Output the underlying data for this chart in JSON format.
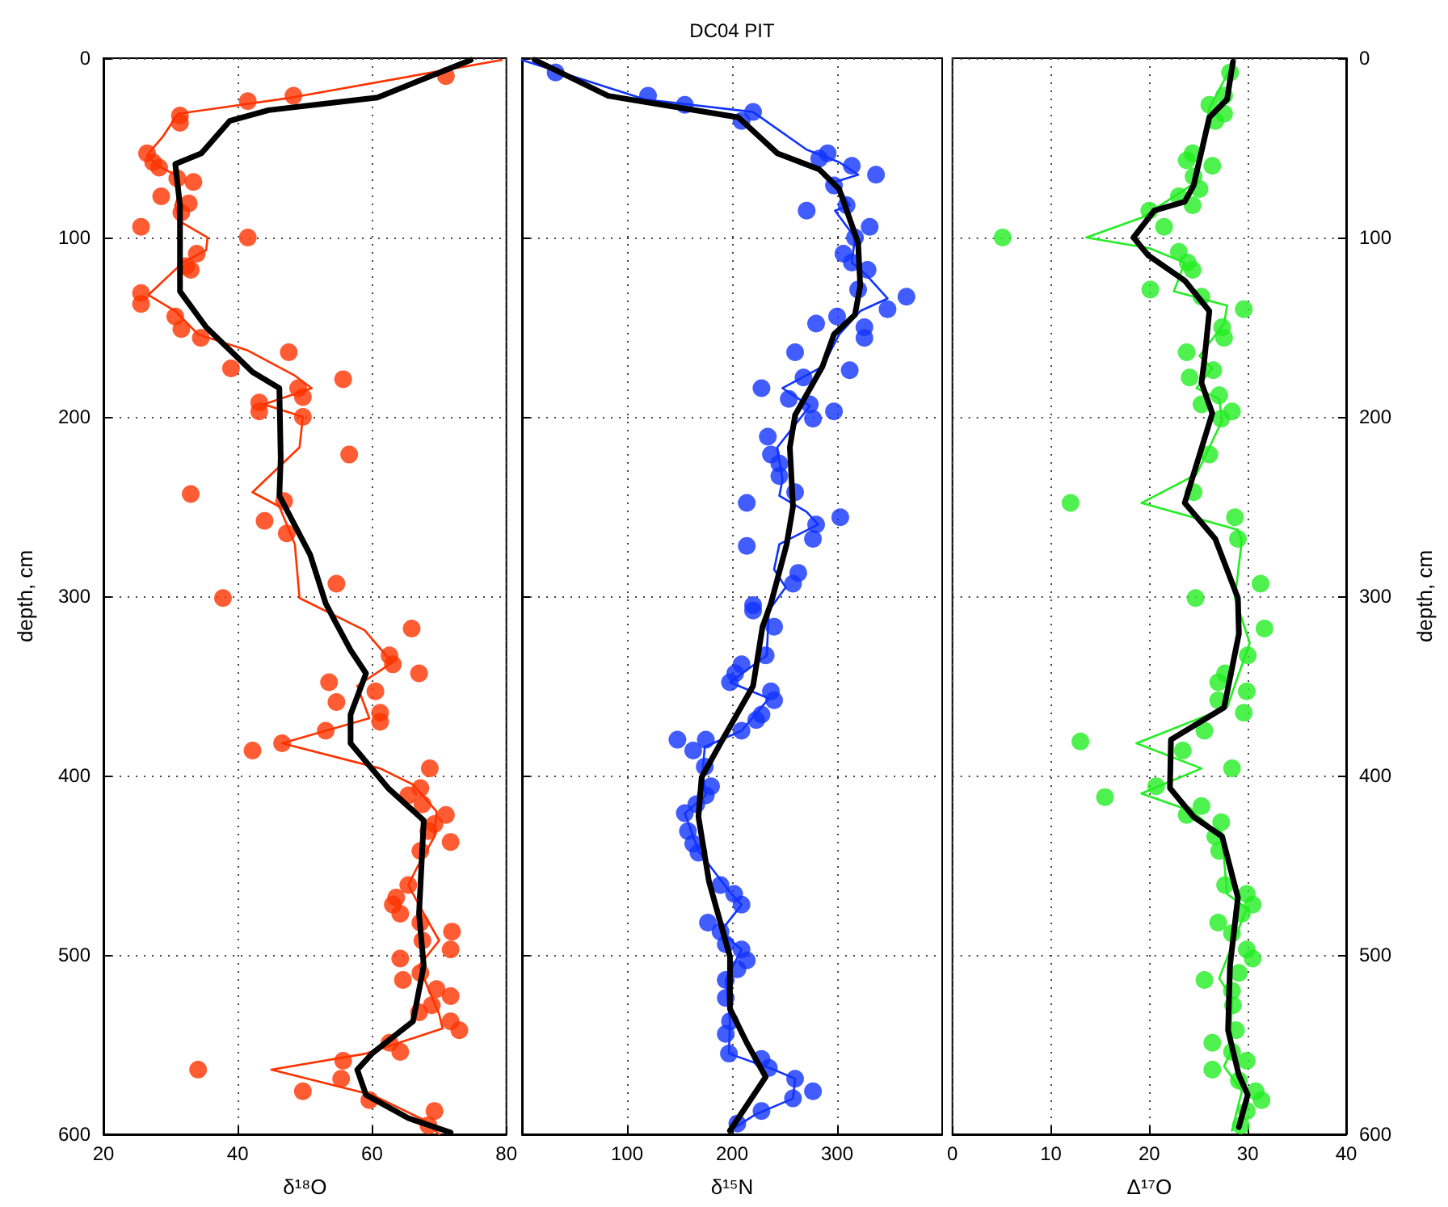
{
  "chart_data": [
    {
      "type": "line",
      "xlabel": "δ¹⁸O",
      "ylabel": "depth, cm",
      "xlim": [
        20,
        80
      ],
      "xticks": [
        20,
        40,
        60,
        80
      ],
      "ylim": [
        600,
        0
      ],
      "yticks": [
        0,
        100,
        200,
        300,
        400,
        500,
        600
      ],
      "grid": true,
      "series": [
        {
          "type": "scatter",
          "marker": "circle",
          "color": "#ff3300",
          "x": [
            71,
            48.3,
            41.5,
            31.4,
            31.4,
            26.5,
            27.4,
            28.3,
            31,
            33.4,
            28.6,
            32.7,
            31.6,
            25.6,
            41.5,
            33.9,
            32.3,
            33,
            25.6,
            25.6,
            30.7,
            31.6,
            34.5,
            47.6,
            39,
            55.7,
            49,
            49.7,
            43.2,
            43.2,
            49.7,
            56.6,
            33,
            46.9,
            47.3,
            44,
            54.7,
            37.8,
            65.9,
            62.6,
            63.1,
            67,
            53.6,
            60.5,
            54.7,
            61.2,
            61.2,
            53.1,
            46.6,
            42.2,
            68.6,
            67.2,
            65.4,
            67.5,
            71,
            69.3,
            68.4,
            71.7,
            67.2,
            65.4,
            63.6,
            63.1,
            64.2,
            67.2,
            71.9,
            67.5,
            71.7,
            64.2,
            67.2,
            64.6,
            69.6,
            71.7,
            68.9,
            67,
            71.7,
            73,
            62.6,
            64.2,
            55.7,
            34.1,
            55.4,
            49.7,
            59.6,
            69.3,
            68.4
          ],
          "values": [
            10,
            21,
            24,
            32,
            36,
            53,
            58,
            61,
            67,
            69,
            77,
            81,
            86,
            94,
            100,
            109,
            116,
            118,
            131,
            137,
            144,
            151,
            156,
            164,
            173,
            179,
            184,
            189,
            192,
            197,
            200,
            221,
            243,
            247,
            265,
            258,
            293,
            301,
            318,
            333,
            338,
            343,
            348,
            353,
            359,
            365,
            370,
            375,
            382,
            386,
            396,
            407,
            411,
            416,
            422,
            427,
            431,
            437,
            442,
            461,
            468,
            472,
            477,
            482,
            487,
            492,
            497,
            502,
            510,
            514,
            519,
            523,
            528,
            532,
            537,
            542,
            549,
            554,
            559,
            564,
            569,
            576,
            581,
            587,
            595
          ]
        },
        {
          "type": "line",
          "marker": "none",
          "line_style": "solid",
          "color": "#ff3300",
          "x": [
            79.3,
            48,
            31.1,
            28.8,
            26.5,
            28.1,
            30.7,
            31.4,
            30.7,
            31.4,
            35.5,
            35.3,
            31.8,
            26.7,
            30.7,
            34.1,
            41.5,
            48.5,
            51,
            43.9,
            49.7,
            49.2,
            42.2,
            46.2,
            48.5,
            49.2,
            58.9,
            63,
            57.8,
            59.6,
            46.6,
            61.2,
            66.1,
            69.6,
            69.3,
            66.6,
            65.4,
            67.7,
            70,
            67,
            68.4,
            70,
            70.5,
            59.1,
            45,
            60,
            67.7,
            70
          ],
          "values": [
            1,
            22,
            31,
            44,
            54,
            60,
            65,
            74,
            82,
            91,
            100,
            107,
            114,
            132,
            141,
            154,
            163,
            177,
            184,
            193,
            200,
            217,
            242,
            250,
            271,
            301,
            319,
            337,
            350,
            368,
            382,
            396,
            405,
            420,
            434,
            452,
            461,
            477,
            492,
            506,
            519,
            533,
            541,
            555,
            564,
            578,
            592,
            600
          ]
        },
        {
          "type": "line",
          "marker": "none",
          "line_style": "solid",
          "color": "#000000",
          "x": [
            74.7,
            60.8,
            44.6,
            38.8,
            34.6,
            30.7,
            31.4,
            31.4,
            35.3,
            42.2,
            46.2,
            46.4,
            46.2,
            50.8,
            53.1,
            54.5,
            56.8,
            59.1,
            56.8,
            56.8,
            62.4,
            67.7,
            67,
            67.7,
            66.1,
            60,
            57.8,
            59.1,
            65.4,
            71.7
          ],
          "values": [
            1,
            22,
            29,
            35,
            53,
            59,
            82,
            130,
            150,
            175,
            184,
            223,
            244,
            277,
            304,
            314,
            330,
            343,
            366,
            382,
            407,
            425,
            477,
            506,
            537,
            555,
            564,
            578,
            591,
            599
          ]
        }
      ]
    },
    {
      "type": "line",
      "title": "DC04 PIT",
      "xlabel": "δ¹⁵N",
      "xlim": [
        0,
        400
      ],
      "xticks": [
        100,
        200,
        300
      ],
      "ylim": [
        600,
        0
      ],
      "yticks": [
        0,
        100,
        200,
        300,
        400,
        500,
        600
      ],
      "tick_labels": "x",
      "grid": true,
      "series": [
        {
          "type": "scatter",
          "marker": "circle",
          "color": "#1133ff",
          "x": [
            32,
            120,
            155,
            220,
            209,
            291,
            283,
            314,
            337,
            297,
            309,
            271,
            331,
            317,
            306,
            314,
            329,
            320,
            366,
            348,
            300,
            280,
            326,
            326,
            260,
            312,
            268,
            228,
            254,
            274,
            277,
            297,
            234,
            237,
            245,
            245,
            260,
            214,
            303,
            280,
            277,
            214,
            263,
            258,
            220,
            220,
            240,
            232,
            209,
            203,
            198,
            237,
            240,
            228,
            223,
            209,
            148,
            175,
            163,
            174,
            180,
            175,
            166,
            155,
            158,
            163,
            168,
            189,
            202,
            209,
            177,
            189,
            194,
            209,
            214,
            205,
            194,
            194,
            198,
            194,
            197,
            228,
            235,
            260,
            277,
            258,
            228,
            205
          ],
          "values": [
            8,
            21,
            26,
            30,
            35,
            53,
            56,
            60,
            65,
            71,
            82,
            85,
            94,
            100,
            109,
            114,
            118,
            129,
            133,
            140,
            144,
            148,
            150,
            156,
            164,
            174,
            178,
            184,
            190,
            193,
            201,
            197,
            211,
            221,
            226,
            233,
            242,
            248,
            256,
            260,
            268,
            272,
            287,
            293,
            305,
            308,
            317,
            333,
            338,
            343,
            348,
            353,
            358,
            366,
            369,
            375,
            380,
            380,
            386,
            395,
            406,
            411,
            416,
            421,
            431,
            438,
            443,
            461,
            466,
            472,
            482,
            487,
            494,
            497,
            503,
            508,
            514,
            524,
            537,
            544,
            555,
            558,
            563,
            569,
            576,
            580,
            587,
            594
          ]
        },
        {
          "type": "line",
          "marker": "none",
          "line_style": "solid",
          "color": "#1133ff",
          "x": [
            0,
            117,
            220,
            271,
            302,
            320,
            298,
            312,
            298,
            317,
            314,
            328,
            348,
            322,
            302,
            286,
            248,
            274,
            243,
            248,
            245,
            271,
            282,
            245,
            240,
            251,
            235,
            233,
            198,
            235,
            209,
            174,
            172,
            175,
            155,
            168,
            198,
            209,
            189,
            209,
            194,
            198,
            197,
            240,
            260,
            258,
            222,
            198
          ],
          "values": [
            1,
            23,
            30,
            51,
            58,
            65,
            69,
            82,
            85,
            100,
            114,
            121,
            134,
            141,
            154,
            172,
            184,
            194,
            217,
            235,
            244,
            253,
            260,
            271,
            285,
            295,
            308,
            333,
            348,
            357,
            375,
            384,
            398,
            411,
            421,
            442,
            465,
            472,
            487,
            497,
            514,
            537,
            555,
            564,
            569,
            580,
            589,
            598
          ]
        },
        {
          "type": "line",
          "marker": "none",
          "line_style": "solid",
          "color": "#000000",
          "x": [
            12,
            82,
            206,
            243,
            283,
            302,
            320,
            322,
            317,
            297,
            286,
            260,
            255,
            258,
            252,
            237,
            229,
            220,
            189,
            171,
            168,
            178,
            198,
            198,
            214,
            232,
            198
          ],
          "values": [
            1,
            21,
            33,
            53,
            62,
            73,
            103,
            127,
            143,
            154,
            172,
            199,
            217,
            250,
            271,
            304,
            317,
            350,
            382,
            401,
            423,
            459,
            501,
            530,
            549,
            568,
            598
          ]
        }
      ]
    },
    {
      "type": "line",
      "xlabel": "Δ¹⁷O",
      "ylabel": "depth, cm",
      "xlim": [
        0,
        40
      ],
      "xticks": [
        0,
        10,
        20,
        30,
        40
      ],
      "ylim": [
        600,
        0
      ],
      "yticks": [
        0,
        100,
        200,
        300,
        400,
        500,
        600
      ],
      "grid": true,
      "series": [
        {
          "type": "scatter",
          "marker": "circle",
          "color": "#22ee22",
          "x": [
            28.2,
            27.6,
            26.1,
            27.6,
            26.7,
            24.4,
            23.8,
            26.4,
            24.5,
            25.1,
            23,
            24.4,
            20,
            21.5,
            5.1,
            23,
            23.9,
            24.4,
            20.1,
            25.3,
            29.6,
            27.4,
            27.6,
            23.8,
            26.5,
            24.1,
            27.1,
            25.3,
            28.4,
            27.3,
            26.1,
            24.5,
            12,
            28.7,
            29,
            31.3,
            24.7,
            31.7,
            30,
            27.7,
            27,
            29.9,
            27,
            29.6,
            25.6,
            13,
            23.4,
            28.4,
            20.7,
            15.5,
            25.3,
            23.8,
            27.3,
            26.7,
            27.1,
            27.7,
            29.9,
            30.5,
            29.4,
            27,
            28.4,
            29.9,
            30.5,
            29.1,
            25.6,
            28.4,
            28.5,
            28.8,
            26.4,
            28.4,
            29.9,
            26.4,
            29.1,
            30.8,
            31.4,
            29.9,
            29.3
          ],
          "values": [
            8,
            21,
            26,
            31,
            35,
            53,
            57,
            60,
            66,
            73,
            77,
            82,
            85,
            94,
            100,
            108,
            114,
            118,
            129,
            133,
            140,
            150,
            156,
            164,
            174,
            178,
            188,
            193,
            197,
            201,
            221,
            242,
            248,
            256,
            268,
            293,
            301,
            318,
            333,
            343,
            348,
            353,
            358,
            365,
            375,
            381,
            386,
            396,
            406,
            412,
            417,
            422,
            426,
            434,
            442,
            461,
            466,
            472,
            477,
            482,
            488,
            497,
            502,
            510,
            514,
            520,
            528,
            542,
            549,
            554,
            559,
            564,
            570,
            576,
            581,
            587,
            595
          ]
        },
        {
          "type": "line",
          "marker": "none",
          "line_style": "solid",
          "color": "#22ee22",
          "x": [
            28.4,
            26.1,
            24.5,
            19.2,
            13.6,
            20,
            23.6,
            22.5,
            27.9,
            27.6,
            25.1,
            26.4,
            24.8,
            27.1,
            27.4,
            24.8,
            19.2,
            29,
            29.4,
            28.7,
            30.2,
            27.9,
            18.7,
            25.3,
            19.2,
            24.4,
            27.4,
            27.9,
            29.9,
            27.1,
            28.4,
            28.2,
            27.6,
            29.4,
            28.4
          ],
          "values": [
            4,
            28,
            70,
            89,
            100,
            106,
            114,
            130,
            138,
            148,
            166,
            173,
            184,
            190,
            202,
            232,
            248,
            263,
            269,
            301,
            326,
            362,
            382,
            396,
            410,
            420,
            434,
            466,
            474,
            513,
            524,
            555,
            562,
            576,
            598
          ]
        },
        {
          "type": "line",
          "marker": "none",
          "line_style": "solid",
          "color": "#000000",
          "x": [
            28.5,
            27.9,
            26.1,
            24.5,
            23.6,
            20.5,
            18.4,
            19.9,
            23.6,
            26.1,
            25.6,
            25.3,
            26.4,
            23.6,
            26.7,
            29,
            29.1,
            27.6,
            22.2,
            22.1,
            24.5,
            27.4,
            29,
            28.2,
            28,
            29.1,
            30,
            29.1
          ],
          "values": [
            2,
            23,
            33,
            71,
            80,
            85,
            100,
            110,
            124,
            141,
            168,
            181,
            198,
            248,
            268,
            301,
            321,
            362,
            380,
            407,
            423,
            434,
            468,
            506,
            542,
            567,
            578,
            596
          ]
        }
      ]
    }
  ]
}
